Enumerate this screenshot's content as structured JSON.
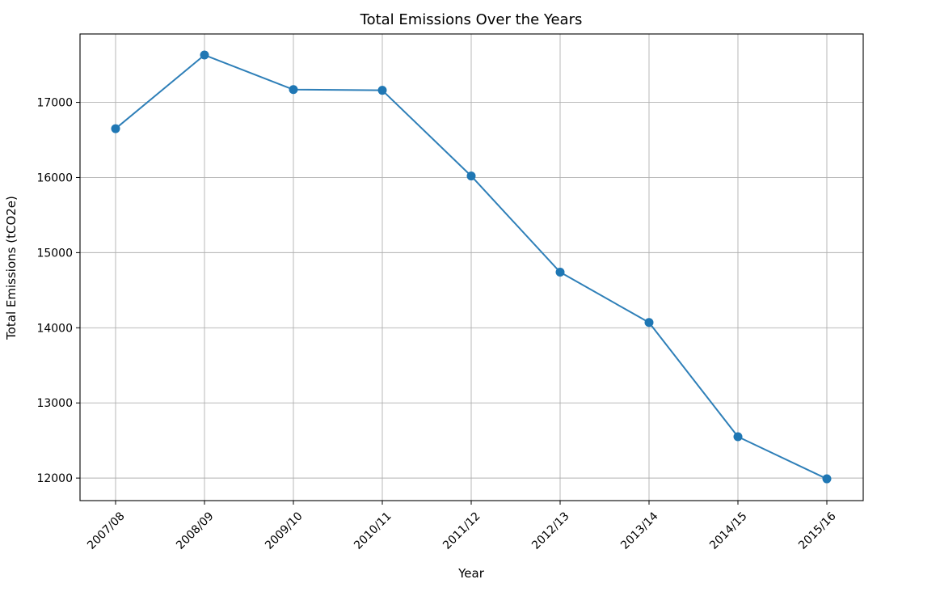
{
  "chart_data": {
    "type": "line",
    "title": "Total Emissions Over the Years",
    "xlabel": "Year",
    "ylabel": "Total Emissions (tCO2e)",
    "categories": [
      "2007/08",
      "2008/09",
      "2009/10",
      "2010/11",
      "2011/12",
      "2012/13",
      "2013/14",
      "2014/15",
      "2015/16"
    ],
    "series": [
      {
        "values": [
          16650,
          17630,
          17170,
          17160,
          16020,
          14740,
          14070,
          12550,
          11990
        ]
      }
    ],
    "yticks": [
      12000,
      13000,
      14000,
      15000,
      16000,
      17000
    ],
    "ytick_labels": [
      "12000",
      "13000",
      "14000",
      "15000",
      "16000",
      "17000"
    ],
    "ylim": [
      11700,
      17910
    ],
    "grid": true,
    "markers": true,
    "line_color": "#2e7fb8",
    "marker_color": "#1f77b4"
  }
}
